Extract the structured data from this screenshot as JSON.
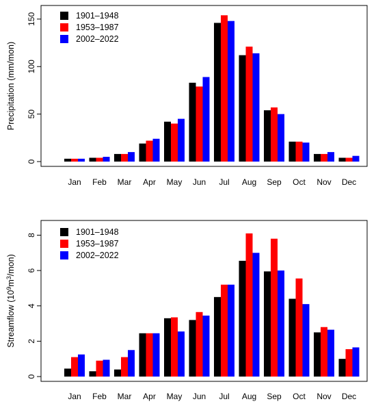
{
  "chart_data": [
    {
      "type": "bar",
      "title": "",
      "xlabel": "",
      "ylabel": "Precipitation (mm/mon)",
      "ylim": [
        0,
        160
      ],
      "yticks": [
        "0",
        "50",
        "100",
        "150"
      ],
      "categories": [
        "Jan",
        "Feb",
        "Mar",
        "Apr",
        "May",
        "Jun",
        "Jul",
        "Aug",
        "Sep",
        "Oct",
        "Nov",
        "Dec"
      ],
      "legend_position": "top-left",
      "series": [
        {
          "name": "1901–1948",
          "color": "#000000",
          "values": [
            3,
            4,
            8,
            19,
            42,
            83,
            146,
            112,
            54,
            21,
            8,
            4
          ]
        },
        {
          "name": "1953–1987",
          "color": "#ff0000",
          "values": [
            3,
            4,
            8,
            22,
            40,
            79,
            154,
            121,
            57,
            21,
            8,
            4
          ]
        },
        {
          "name": "2002–2022",
          "color": "#0000ff",
          "values": [
            3,
            5,
            10,
            24,
            45,
            89,
            148,
            114,
            50,
            20,
            10,
            6
          ]
        }
      ]
    },
    {
      "type": "bar",
      "title": "",
      "xlabel": "",
      "ylabel": "Streamflow (10",
      "ylabel_sup1": "9",
      "ylabel_mid": "m",
      "ylabel_sup2": "3",
      "ylabel_end": "/mon)",
      "ylim": [
        0,
        8.6
      ],
      "yticks": [
        "0",
        "2",
        "4",
        "6",
        "8"
      ],
      "categories": [
        "Jan",
        "Feb",
        "Mar",
        "Apr",
        "May",
        "Jun",
        "Jul",
        "Aug",
        "Sep",
        "Oct",
        "Nov",
        "Dec"
      ],
      "legend_position": "top-left",
      "series": [
        {
          "name": "1901–1948",
          "color": "#000000",
          "values": [
            0.45,
            0.3,
            0.4,
            2.45,
            3.3,
            3.2,
            4.5,
            6.55,
            5.95,
            4.4,
            2.5,
            1.0
          ]
        },
        {
          "name": "1953–1987",
          "color": "#ff0000",
          "values": [
            1.1,
            0.9,
            1.1,
            2.45,
            3.35,
            3.65,
            5.2,
            8.1,
            7.8,
            5.55,
            2.8,
            1.55
          ]
        },
        {
          "name": "2002–2022",
          "color": "#0000ff",
          "values": [
            1.25,
            0.95,
            1.5,
            2.45,
            2.55,
            3.45,
            5.2,
            7.0,
            6.0,
            4.1,
            2.65,
            1.65
          ]
        }
      ]
    }
  ]
}
